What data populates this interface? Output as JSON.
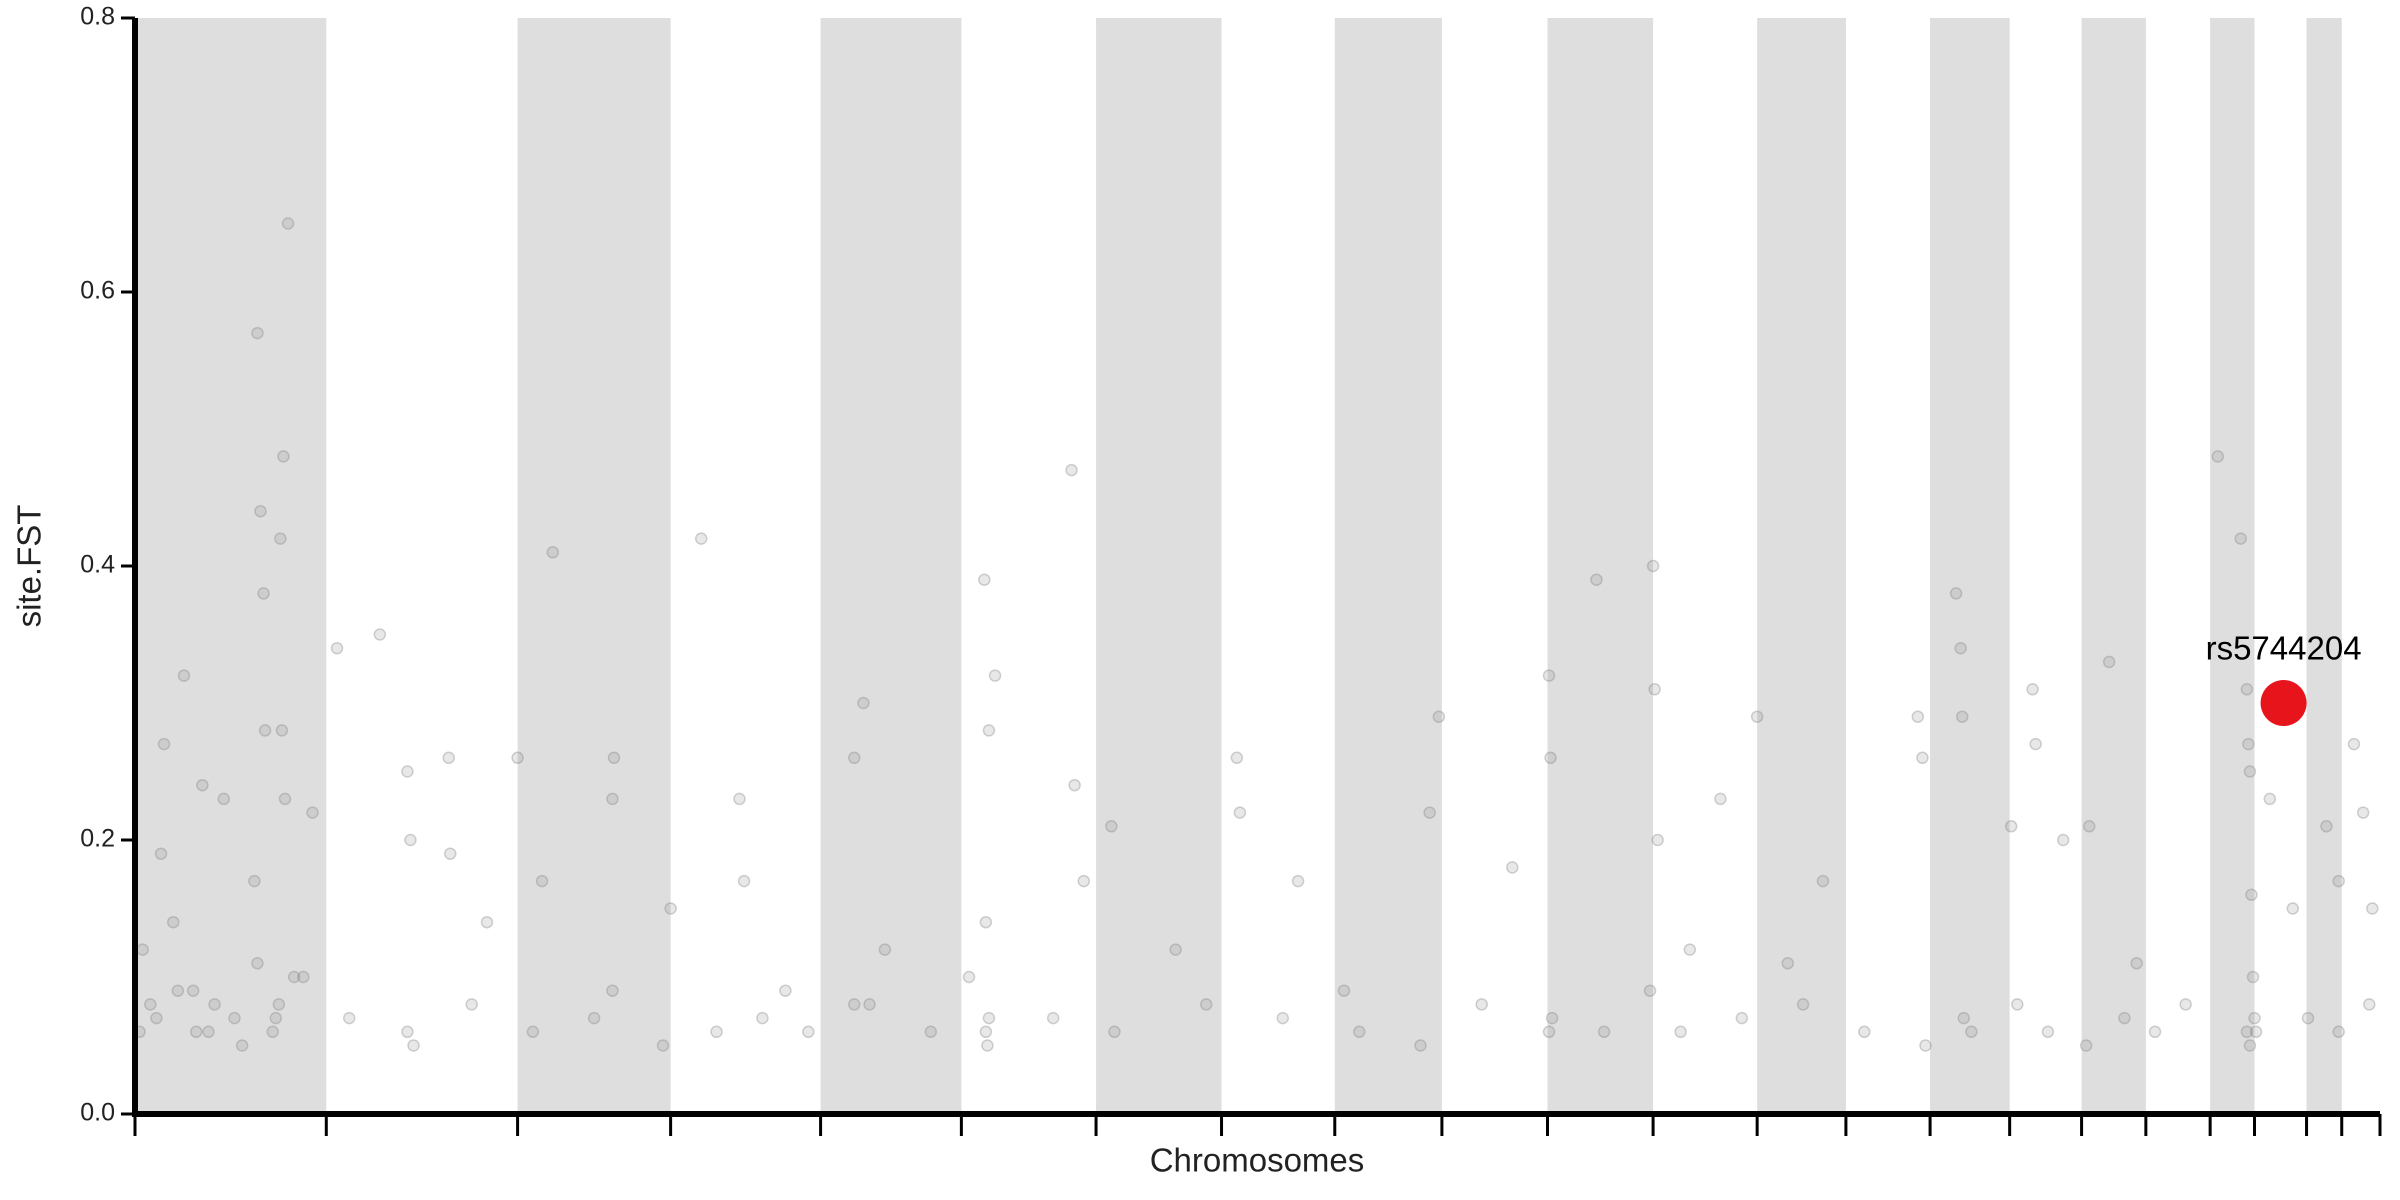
{
  "chart_data": {
    "type": "scatter",
    "x_label": "Chromosomes",
    "y_label": "site.FST",
    "xlim": [
      0,
      1467
    ],
    "ylim": [
      0,
      0.8
    ],
    "yticks": [
      {
        "value": 0,
        "label": "0.0"
      },
      0.2,
      0.4,
      0.6,
      0.8
    ],
    "chromosome_bounds": [
      0,
      125,
      250,
      350,
      448,
      540,
      628,
      710,
      784,
      854,
      923,
      992,
      1060,
      1118,
      1173,
      1225,
      1272,
      1314,
      1356,
      1385,
      1419,
      1442,
      1467
    ],
    "band_color": "#dedede",
    "series": [
      {
        "color": "#808080",
        "x": [
          5,
          10,
          17,
          19,
          25,
          32,
          38,
          44,
          48,
          58,
          65,
          80,
          82,
          84,
          85,
          80,
          78,
          95,
          96,
          97,
          100,
          98,
          110,
          116,
          132,
          160,
          178,
          180,
          205,
          206,
          230,
          250,
          266,
          273,
          312,
          313,
          350,
          370,
          395,
          398,
          425,
          470,
          476,
          470,
          490,
          555,
          558,
          562,
          556,
          558,
          545,
          612,
          614,
          620,
          638,
          680,
          720,
          722,
          760,
          790,
          852,
          846,
          900,
          924,
          925,
          955,
          992,
          993,
          995,
          1016,
          1036,
          1060,
          1080,
          1103,
          1165,
          1168,
          1190,
          1193,
          1194,
          1226,
          1240,
          1242,
          1260,
          1277,
          1290,
          1308,
          1361,
          1376,
          1380,
          1381,
          1382,
          1383,
          1384,
          1385,
          1386,
          1395,
          1410,
          1432,
          1440,
          1450,
          1456,
          1462,
          3,
          14,
          28,
          40,
          52,
          70,
          90,
          92,
          94,
          104,
          140,
          178,
          182,
          220,
          260,
          300,
          312,
          345,
          380,
          410,
          440,
          480,
          520,
          556,
          557,
          600,
          640,
          700,
          750,
          800,
          840,
          880,
          924,
          926,
          960,
          990,
          1010,
          1050,
          1090,
          1130,
          1170,
          1195,
          1200,
          1230,
          1250,
          1275,
          1300,
          1320,
          1340,
          1380,
          1382,
          1420,
          1440,
          1460
        ],
        "values": [
          0.12,
          0.08,
          0.19,
          0.27,
          0.14,
          0.32,
          0.09,
          0.24,
          0.06,
          0.23,
          0.07,
          0.57,
          0.44,
          0.38,
          0.28,
          0.11,
          0.17,
          0.42,
          0.28,
          0.48,
          0.65,
          0.23,
          0.1,
          0.22,
          0.34,
          0.35,
          0.25,
          0.2,
          0.26,
          0.19,
          0.14,
          0.26,
          0.17,
          0.41,
          0.23,
          0.26,
          0.15,
          0.42,
          0.23,
          0.17,
          0.09,
          0.26,
          0.3,
          0.08,
          0.12,
          0.39,
          0.28,
          0.32,
          0.14,
          0.07,
          0.1,
          0.47,
          0.24,
          0.17,
          0.21,
          0.12,
          0.26,
          0.22,
          0.17,
          0.09,
          0.29,
          0.22,
          0.18,
          0.32,
          0.26,
          0.39,
          0.4,
          0.31,
          0.2,
          0.12,
          0.23,
          0.29,
          0.11,
          0.17,
          0.29,
          0.26,
          0.38,
          0.34,
          0.29,
          0.21,
          0.31,
          0.27,
          0.2,
          0.21,
          0.33,
          0.11,
          0.48,
          0.42,
          0.31,
          0.27,
          0.25,
          0.16,
          0.1,
          0.07,
          0.06,
          0.23,
          0.15,
          0.21,
          0.17,
          0.27,
          0.22,
          0.15,
          0.06,
          0.07,
          0.09,
          0.06,
          0.08,
          0.05,
          0.06,
          0.07,
          0.08,
          0.1,
          0.07,
          0.06,
          0.05,
          0.08,
          0.06,
          0.07,
          0.09,
          0.05,
          0.06,
          0.07,
          0.06,
          0.08,
          0.06,
          0.06,
          0.05,
          0.07,
          0.06,
          0.08,
          0.07,
          0.06,
          0.05,
          0.08,
          0.06,
          0.07,
          0.06,
          0.09,
          0.06,
          0.07,
          0.08,
          0.06,
          0.05,
          0.07,
          0.06,
          0.08,
          0.06,
          0.05,
          0.07,
          0.06,
          0.08,
          0.06,
          0.05,
          0.07,
          0.06,
          0.08
        ]
      }
    ],
    "highlight": {
      "label": "rs5744204",
      "x": 1404,
      "value": 0.3,
      "color": "#e8141c"
    }
  }
}
